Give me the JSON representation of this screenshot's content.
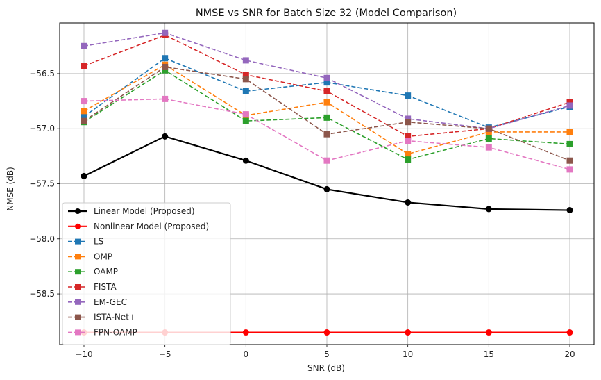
{
  "chart_data": {
    "type": "line",
    "title": "NMSE vs SNR for Batch Size 32 (Model Comparison)",
    "xlabel": "SNR (dB)",
    "ylabel": "NMSE (dB)",
    "x": [
      -10,
      -5,
      0,
      5,
      10,
      15,
      20
    ],
    "xticks": [
      -10,
      -5,
      0,
      5,
      10,
      15,
      20
    ],
    "xtick_labels": [
      "−10",
      "−5",
      "0",
      "5",
      "10",
      "15",
      "20"
    ],
    "yticks": [
      -58.5,
      -58.0,
      -57.5,
      -57.0,
      -56.5
    ],
    "ytick_labels": [
      "−58.5",
      "−58.0",
      "−57.5",
      "−57.0",
      "−56.5"
    ],
    "xlim": [
      -11.5,
      21.5
    ],
    "ylim": [
      -58.96,
      -56.04
    ],
    "grid": true,
    "legend_position": "lower-left",
    "series": [
      {
        "name": "Linear Model (Proposed)",
        "color": "#000000",
        "style": "solid",
        "marker": "circle",
        "values": [
          -57.43,
          -57.07,
          -57.29,
          -57.55,
          -57.67,
          -57.73,
          -57.74
        ]
      },
      {
        "name": "Nonlinear Model (Proposed)",
        "color": "#ff0000",
        "style": "solid",
        "marker": "circle",
        "values": [
          -58.85,
          -58.85,
          -58.85,
          -58.85,
          -58.85,
          -58.85,
          -58.85
        ]
      },
      {
        "name": "LS",
        "color": "#1f77b4",
        "style": "dashed",
        "marker": "square",
        "values": [
          -56.89,
          -56.36,
          -56.66,
          -56.58,
          -56.7,
          -56.99,
          -56.8
        ]
      },
      {
        "name": "OMP",
        "color": "#ff7f0e",
        "style": "dashed",
        "marker": "square",
        "values": [
          -56.84,
          -56.42,
          -56.88,
          -56.76,
          -57.23,
          -57.03,
          -57.03
        ]
      },
      {
        "name": "OAMP",
        "color": "#2ca02c",
        "style": "dashed",
        "marker": "square",
        "values": [
          -56.94,
          -56.47,
          -56.93,
          -56.9,
          -57.28,
          -57.09,
          -57.14
        ]
      },
      {
        "name": "FISTA",
        "color": "#d62728",
        "style": "dashed",
        "marker": "square",
        "values": [
          -56.43,
          -56.15,
          -56.51,
          -56.66,
          -57.07,
          -57.0,
          -56.76
        ]
      },
      {
        "name": "EM-GEC",
        "color": "#9467bd",
        "style": "dashed",
        "marker": "square",
        "values": [
          -56.25,
          -56.13,
          -56.38,
          -56.54,
          -56.91,
          -57.0,
          -56.79
        ]
      },
      {
        "name": "ISTA-Net+",
        "color": "#8c564b",
        "style": "dashed",
        "marker": "square",
        "values": [
          -56.93,
          -56.44,
          -56.55,
          -57.05,
          -56.94,
          -57.0,
          -57.29
        ]
      },
      {
        "name": "FPN-OAMP",
        "color": "#e377c2",
        "style": "dashed",
        "marker": "square",
        "values": [
          -56.75,
          -56.73,
          -56.87,
          -57.29,
          -57.11,
          -57.17,
          -57.37
        ]
      }
    ]
  }
}
